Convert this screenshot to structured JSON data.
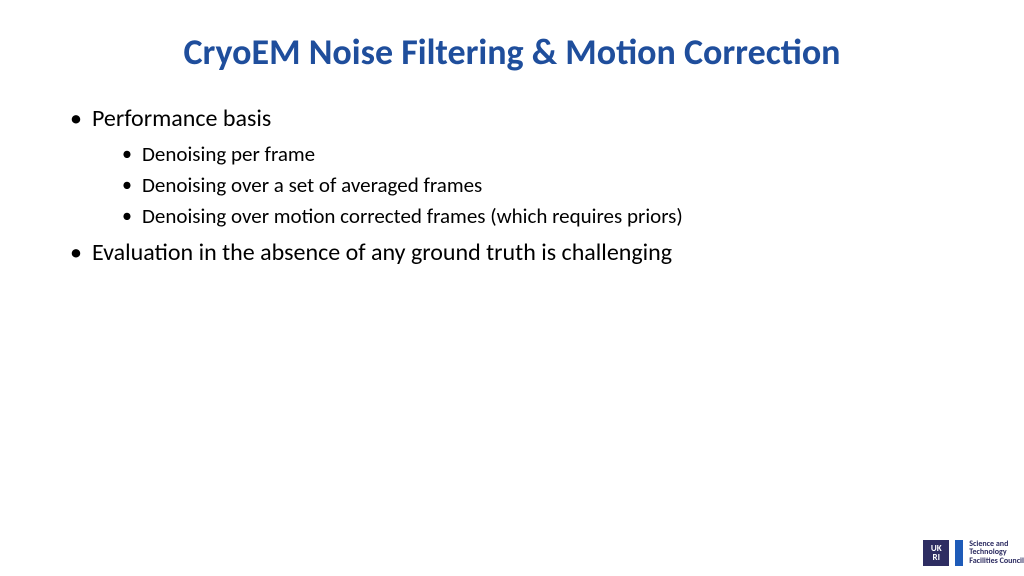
{
  "slide": {
    "title": "CryoEM Noise Filtering & Motion Correction",
    "title_color": "#1f4e9c",
    "title_fontsize": 36,
    "background_color": "#ffffff",
    "body_color": "#000000",
    "body_fontsize_level1": 24,
    "body_fontsize_level2": 21,
    "bullets": [
      {
        "text": "Performance basis",
        "children": [
          "Denoising per frame",
          "Denoising over a set of averaged frames",
          "Denoising over motion corrected frames (which requires priors)"
        ]
      },
      {
        "text": "Evaluation in the absence of any ground truth is challenging",
        "children": []
      }
    ]
  },
  "footer": {
    "ukri_label_top": "UK",
    "ukri_label_bottom": "RI",
    "ukri_bg_color": "#2e2d62",
    "stfc_bar_color": "#1e5bb8",
    "stfc_line1": "Science and",
    "stfc_line2": "Technology",
    "stfc_line3": "Facilities Council"
  }
}
